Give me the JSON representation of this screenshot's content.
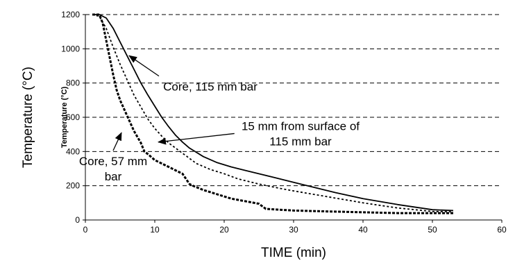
{
  "chart_data": {
    "type": "line",
    "title": "",
    "xlabel": "TIME (min)",
    "ylabel": "Temperature (°C)",
    "ylabel_small": "Temperature (°C)",
    "xlim": [
      0,
      60
    ],
    "ylim": [
      0,
      1200
    ],
    "xticks": [
      0,
      10,
      20,
      30,
      40,
      50,
      60
    ],
    "yticks": [
      0,
      200,
      400,
      600,
      800,
      1000,
      1200
    ],
    "grid": "horizontal-dashed",
    "legend": "none",
    "series": [
      {
        "style": "solid",
        "x": [
          1,
          2,
          3,
          4,
          5,
          6,
          7,
          8,
          9,
          10,
          11,
          12,
          13,
          14,
          15,
          17,
          19,
          21,
          23,
          25,
          27,
          30,
          33,
          36,
          40,
          45,
          50,
          53
        ],
        "y": [
          1200,
          1200,
          1180,
          1120,
          1040,
          960,
          880,
          800,
          730,
          665,
          600,
          545,
          495,
          455,
          420,
          370,
          335,
          310,
          290,
          270,
          250,
          220,
          190,
          160,
          125,
          90,
          60,
          55
        ]
      },
      {
        "style": "dotted",
        "x": [
          1,
          2,
          3,
          4,
          5,
          6,
          7,
          8,
          9,
          10,
          11,
          12,
          14,
          16,
          18,
          20,
          22,
          25,
          28,
          30,
          35,
          40,
          45,
          50,
          53
        ],
        "y": [
          1200,
          1190,
          1120,
          1010,
          910,
          820,
          730,
          660,
          590,
          535,
          490,
          450,
          390,
          330,
          295,
          270,
          240,
          210,
          185,
          170,
          135,
          100,
          70,
          50,
          48
        ]
      },
      {
        "style": "dashed",
        "x": [
          1,
          2,
          2.5,
          3,
          3.5,
          4,
          4.5,
          5,
          6,
          7,
          8,
          8.5,
          9,
          10,
          11,
          12,
          13,
          14,
          15,
          15.5,
          17,
          19,
          21,
          23,
          25,
          26,
          30,
          35,
          40,
          45,
          50,
          53
        ],
        "y": [
          1200,
          1200,
          1150,
          1050,
          950,
          850,
          760,
          700,
          610,
          520,
          450,
          400,
          385,
          350,
          330,
          310,
          290,
          270,
          210,
          200,
          175,
          150,
          125,
          110,
          95,
          65,
          55,
          50,
          45,
          40,
          40,
          40
        ]
      }
    ],
    "annotations": [
      {
        "lines": [
          "Core, 115 mm bar"
        ],
        "target": [
          6.3,
          960
        ],
        "text_at": [
          18,
          780
        ]
      },
      {
        "lines": [
          "15 mm from surface of",
          "115 mm bar"
        ],
        "target": [
          10.5,
          455
        ],
        "text_at": [
          31,
          505
        ]
      },
      {
        "lines": [
          "Core, 57 mm",
          "bar"
        ],
        "target": [
          5.2,
          510
        ],
        "text_at": [
          4,
          300
        ]
      }
    ]
  }
}
